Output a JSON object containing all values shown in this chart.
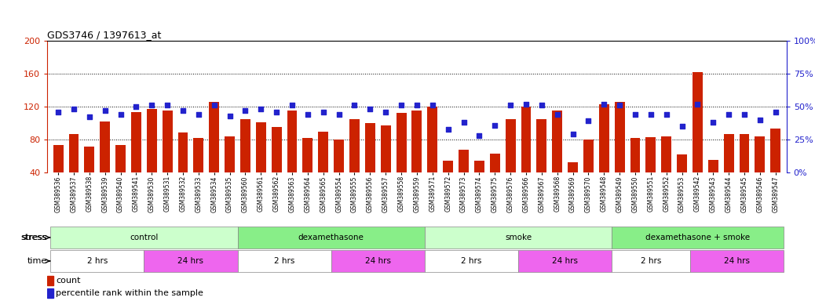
{
  "title": "GDS3746 / 1397613_at",
  "samples": [
    "GSM389536",
    "GSM389537",
    "GSM389538",
    "GSM389539",
    "GSM389540",
    "GSM389541",
    "GSM389530",
    "GSM389531",
    "GSM389532",
    "GSM389533",
    "GSM389534",
    "GSM389535",
    "GSM389560",
    "GSM389561",
    "GSM389562",
    "GSM389563",
    "GSM389564",
    "GSM389565",
    "GSM389554",
    "GSM389555",
    "GSM389556",
    "GSM389557",
    "GSM389558",
    "GSM389559",
    "GSM389571",
    "GSM389572",
    "GSM389573",
    "GSM389574",
    "GSM389575",
    "GSM389576",
    "GSM389566",
    "GSM389567",
    "GSM389568",
    "GSM389569",
    "GSM389570",
    "GSM389548",
    "GSM389549",
    "GSM389550",
    "GSM389551",
    "GSM389552",
    "GSM389553",
    "GSM389542",
    "GSM389543",
    "GSM389544",
    "GSM389545",
    "GSM389546",
    "GSM389547"
  ],
  "counts": [
    73,
    87,
    71,
    102,
    73,
    113,
    117,
    115,
    89,
    82,
    126,
    84,
    105,
    101,
    95,
    115,
    82,
    90,
    80,
    105,
    100,
    97,
    112,
    115,
    120,
    54,
    68,
    54,
    63,
    105,
    120,
    105,
    115,
    52,
    80,
    123,
    126,
    82,
    83,
    84,
    62,
    162,
    55,
    87,
    87,
    84,
    93
  ],
  "percentiles": [
    46,
    48,
    42,
    47,
    44,
    50,
    51,
    51,
    47,
    44,
    51,
    43,
    47,
    48,
    46,
    51,
    44,
    46,
    44,
    51,
    48,
    46,
    51,
    51,
    51,
    33,
    38,
    28,
    36,
    51,
    52,
    51,
    44,
    29,
    39,
    52,
    51,
    44,
    44,
    44,
    35,
    52,
    38,
    44,
    44,
    40,
    46
  ],
  "bar_color": "#cc2200",
  "dot_color": "#2222cc",
  "left_ylim": [
    40,
    200
  ],
  "right_ylim": [
    0,
    100
  ],
  "left_yticks": [
    40,
    80,
    120,
    160,
    200
  ],
  "right_yticks": [
    0,
    25,
    50,
    75,
    100
  ],
  "stress_groups": [
    {
      "label": "control",
      "start": 0,
      "end": 12,
      "color": "#ccffcc"
    },
    {
      "label": "dexamethasone",
      "start": 12,
      "end": 24,
      "color": "#88ee88"
    },
    {
      "label": "smoke",
      "start": 24,
      "end": 36,
      "color": "#ccffcc"
    },
    {
      "label": "dexamethasone + smoke",
      "start": 36,
      "end": 47,
      "color": "#88ee88"
    }
  ],
  "time_groups": [
    {
      "label": "2 hrs",
      "start": 0,
      "end": 6,
      "color": "#ffffff"
    },
    {
      "label": "24 hrs",
      "start": 6,
      "end": 12,
      "color": "#ee66ee"
    },
    {
      "label": "2 hrs",
      "start": 12,
      "end": 18,
      "color": "#ffffff"
    },
    {
      "label": "24 hrs",
      "start": 18,
      "end": 24,
      "color": "#ee66ee"
    },
    {
      "label": "2 hrs",
      "start": 24,
      "end": 30,
      "color": "#ffffff"
    },
    {
      "label": "24 hrs",
      "start": 30,
      "end": 36,
      "color": "#ee66ee"
    },
    {
      "label": "2 hrs",
      "start": 36,
      "end": 41,
      "color": "#ffffff"
    },
    {
      "label": "24 hrs",
      "start": 41,
      "end": 47,
      "color": "#ee66ee"
    }
  ],
  "bg_color": "#ffffff"
}
